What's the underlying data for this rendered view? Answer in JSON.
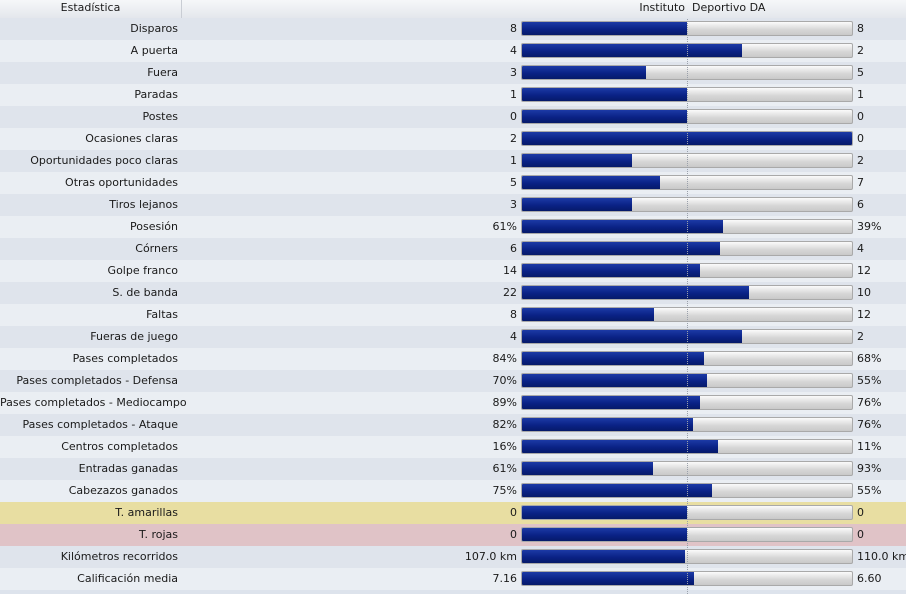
{
  "header": {
    "stat_col": "Estadística",
    "home_team": "Instituto",
    "away_team": "Deportivo DA"
  },
  "colors": {
    "bar_fill": "#0a2286",
    "bar_track": "#d6d6d6",
    "yellow_row": "#e8dea2",
    "red_row": "#e0c3c7"
  },
  "stats": [
    {
      "label": "Disparos",
      "home": "8",
      "away": "8",
      "share": 0.5
    },
    {
      "label": "A puerta",
      "home": "4",
      "away": "2",
      "share": 0.667
    },
    {
      "label": "Fuera",
      "home": "3",
      "away": "5",
      "share": 0.375
    },
    {
      "label": "Paradas",
      "home": "1",
      "away": "1",
      "share": 0.5
    },
    {
      "label": "Postes",
      "home": "0",
      "away": "0",
      "share": 0.5
    },
    {
      "label": "Ocasiones claras",
      "home": "2",
      "away": "0",
      "share": 1.0
    },
    {
      "label": "Oportunidades poco claras",
      "home": "1",
      "away": "2",
      "share": 0.333
    },
    {
      "label": "Otras oportunidades",
      "home": "5",
      "away": "7",
      "share": 0.417
    },
    {
      "label": "Tiros lejanos",
      "home": "3",
      "away": "6",
      "share": 0.333
    },
    {
      "label": "Posesión",
      "home": "61%",
      "away": "39%",
      "share": 0.61
    },
    {
      "label": "Córners",
      "home": "6",
      "away": "4",
      "share": 0.6
    },
    {
      "label": "Golpe franco",
      "home": "14",
      "away": "12",
      "share": 0.538
    },
    {
      "label": "S. de banda",
      "home": "22",
      "away": "10",
      "share": 0.6875
    },
    {
      "label": "Faltas",
      "home": "8",
      "away": "12",
      "share": 0.4
    },
    {
      "label": "Fueras de juego",
      "home": "4",
      "away": "2",
      "share": 0.667
    },
    {
      "label": "Pases completados",
      "home": "84%",
      "away": "68%",
      "share": 0.553
    },
    {
      "label": "Pases completados - Defensa",
      "home": "70%",
      "away": "55%",
      "share": 0.56
    },
    {
      "label": "Pases completados - Mediocampo",
      "home": "89%",
      "away": "76%",
      "share": 0.539
    },
    {
      "label": "Pases completados - Ataque",
      "home": "82%",
      "away": "76%",
      "share": 0.519
    },
    {
      "label": "Centros completados",
      "home": "16%",
      "away": "11%",
      "share": 0.593
    },
    {
      "label": "Entradas ganadas",
      "home": "61%",
      "away": "93%",
      "share": 0.396
    },
    {
      "label": "Cabezazos ganados",
      "home": "75%",
      "away": "55%",
      "share": 0.577
    },
    {
      "label": "T. amarillas",
      "home": "0",
      "away": "0",
      "share": 0.5,
      "highlight": "yellow"
    },
    {
      "label": "T. rojas",
      "home": "0",
      "away": "0",
      "share": 0.5,
      "highlight": "red"
    },
    {
      "label": "Kilómetros recorridos",
      "home": "107.0 km",
      "away": "110.0 km",
      "share": 0.493
    },
    {
      "label": "Calificación media",
      "home": "7.16",
      "away": "6.60",
      "share": 0.52
    }
  ]
}
